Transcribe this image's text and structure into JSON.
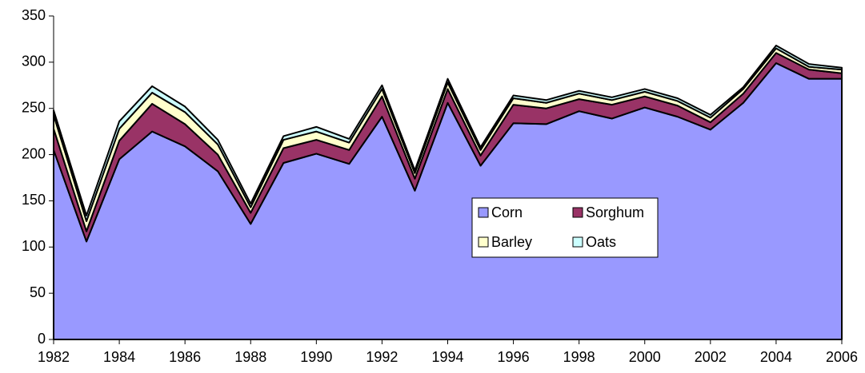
{
  "chart_data": {
    "type": "stacked-area",
    "x": [
      1982,
      1983,
      1984,
      1985,
      1986,
      1987,
      1988,
      1989,
      1990,
      1991,
      1992,
      1993,
      1994,
      1995,
      1996,
      1997,
      1998,
      1999,
      2000,
      2001,
      2002,
      2003,
      2004,
      2005,
      2006
    ],
    "series": [
      {
        "name": "Corn",
        "color": "#9999ff",
        "values": [
          205,
          106,
          195,
          225,
          209,
          182,
          125,
          191,
          201,
          190,
          241,
          161,
          256,
          188,
          234,
          233,
          247,
          239,
          251,
          241,
          227,
          256,
          299,
          282,
          282
        ]
      },
      {
        "name": "Sorghum",
        "color": "#993366",
        "values": [
          23,
          11,
          20,
          30,
          24,
          18,
          12,
          16,
          15,
          15,
          22,
          13,
          15,
          11,
          20,
          17,
          13,
          15,
          12,
          12,
          8,
          10,
          11,
          10,
          6
        ]
      },
      {
        "name": "Barley",
        "color": "#ffffcc",
        "values": [
          15,
          11,
          13,
          12,
          13,
          11,
          6,
          9,
          9,
          8,
          8,
          6,
          7,
          6,
          7,
          6,
          6,
          5,
          5,
          5,
          5,
          5,
          5,
          3,
          4
        ]
      },
      {
        "name": "Oats",
        "color": "#ccffff",
        "values": [
          5,
          6,
          8,
          7,
          6,
          5,
          4,
          4,
          5,
          4,
          4,
          3,
          4,
          3,
          3,
          3,
          3,
          3,
          3,
          3,
          3,
          2,
          3,
          3,
          2
        ]
      }
    ],
    "xlim": [
      1982,
      2006
    ],
    "xticks": [
      1982,
      1984,
      1986,
      1988,
      1990,
      1992,
      1994,
      1996,
      1998,
      2000,
      2002,
      2004,
      2006
    ],
    "ylim": [
      0,
      350
    ],
    "yticks": [
      0,
      50,
      100,
      150,
      200,
      250,
      300,
      350
    ],
    "legend": "center"
  }
}
